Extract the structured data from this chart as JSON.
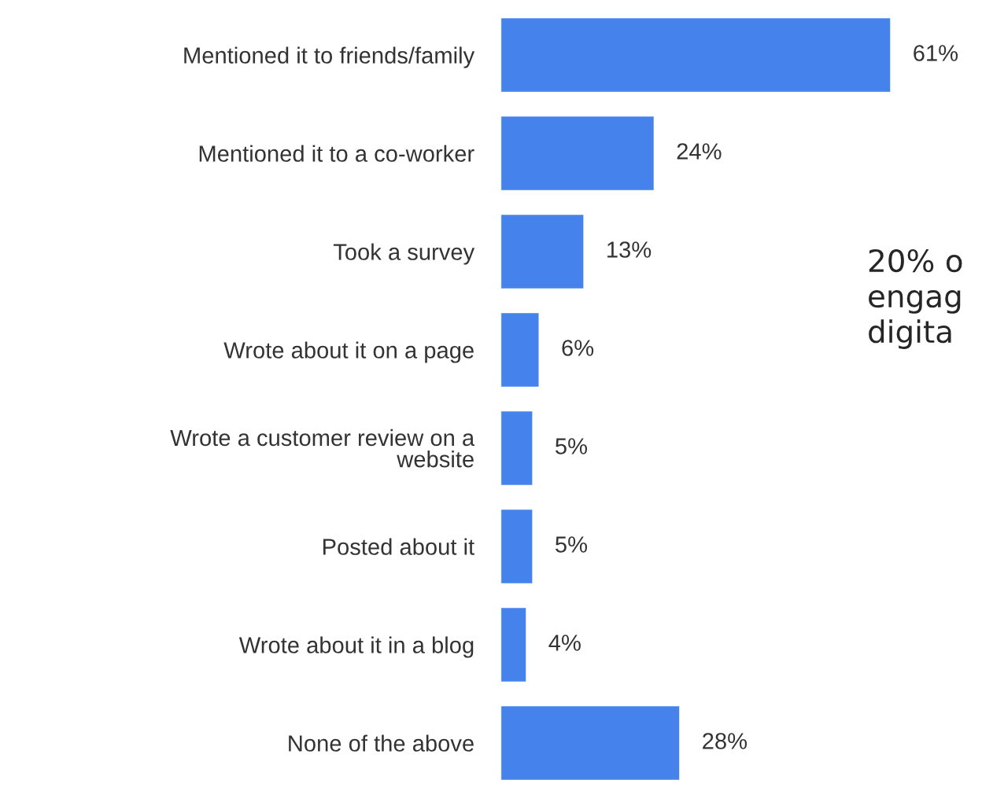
{
  "chart_data": {
    "type": "bar",
    "orientation": "horizontal",
    "categories": [
      "Mentioned it to friends/family",
      "Mentioned it to a co-worker",
      "Took a survey",
      "Wrote about it on a page",
      "Wrote a customer review on a\nwebsite",
      "Posted about it",
      "Wrote about it in a blog",
      "None of the above"
    ],
    "values": [
      61,
      24,
      13,
      6,
      5,
      5,
      4,
      28
    ],
    "value_labels": [
      "61%",
      "24%",
      "13%",
      "6%",
      "5%",
      "5%",
      "4%",
      "28%"
    ],
    "color": "#4582ec",
    "grid": false,
    "legend": false,
    "annotations": [
      "20% o\nengag\ndigita"
    ]
  }
}
